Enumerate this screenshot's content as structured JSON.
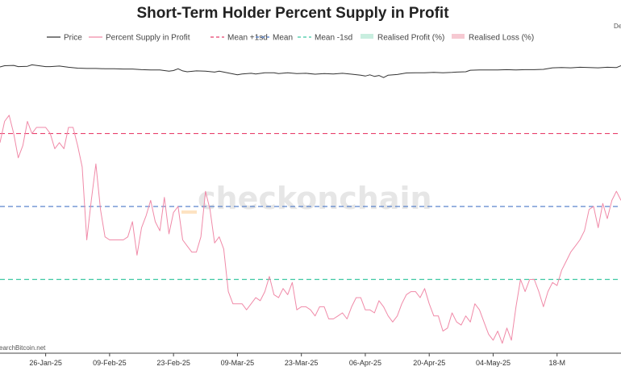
{
  "chart_data": {
    "type": "line",
    "title": "Short-Term Holder Percent Supply in Profit",
    "corner_label": "De",
    "watermark": "checkonchain",
    "source_note": "earchBitcoin.net",
    "legend": [
      {
        "name": "Price",
        "color": "#333333",
        "style": "solid"
      },
      {
        "name": "Percent Supply in Profit",
        "color": "#f08aa8",
        "style": "solid"
      },
      {
        "name": "Mean +1sd",
        "color": "#e8426e",
        "style": "dashed"
      },
      {
        "name": "Mean",
        "color": "#4a78c8",
        "style": "dashed"
      },
      {
        "name": "Mean -1sd",
        "color": "#3ec8a2",
        "style": "dashed"
      },
      {
        "name": "Realised Profit (%)",
        "color": "#c8eedf",
        "style": "box"
      },
      {
        "name": "Realised Loss (%)",
        "color": "#f6c9d2",
        "style": "box"
      }
    ],
    "x_ticks": [
      "26-Jan-25",
      "09-Feb-25",
      "23-Feb-25",
      "09-Mar-25",
      "23-Mar-25",
      "06-Apr-25",
      "20-Apr-25",
      "04-May-25",
      "18-M"
    ],
    "x_range_days": [
      -10,
      126
    ],
    "y_range": [
      0,
      100
    ],
    "mean_plus_1sd": 72,
    "mean": 48,
    "mean_minus_1sd": 24,
    "price_series": [
      [
        -10,
        93.9
      ],
      [
        -9,
        94.3
      ],
      [
        -7,
        94.4
      ],
      [
        -6,
        94.0
      ],
      [
        -4,
        94.1
      ],
      [
        -3,
        94.6
      ],
      [
        -1,
        94.2
      ],
      [
        0,
        94.0
      ],
      [
        1,
        94.0
      ],
      [
        3,
        94.2
      ],
      [
        5,
        93.8
      ],
      [
        7,
        93.5
      ],
      [
        9,
        93.4
      ],
      [
        11,
        93.4
      ],
      [
        13,
        93.3
      ],
      [
        15,
        93.3
      ],
      [
        17,
        93.2
      ],
      [
        19,
        93.2
      ],
      [
        21,
        93.0
      ],
      [
        23,
        92.9
      ],
      [
        25,
        92.9
      ],
      [
        27,
        92.5
      ],
      [
        28,
        92.7
      ],
      [
        29,
        93.3
      ],
      [
        30,
        92.6
      ],
      [
        31,
        92.3
      ],
      [
        33,
        92.6
      ],
      [
        35,
        92.5
      ],
      [
        37,
        92.2
      ],
      [
        38,
        92.5
      ],
      [
        40,
        91.9
      ],
      [
        42,
        91.3
      ],
      [
        43,
        91.6
      ],
      [
        45,
        91.8
      ],
      [
        46,
        91.6
      ],
      [
        48,
        92.0
      ],
      [
        50,
        92.0
      ],
      [
        51,
        91.7
      ],
      [
        53,
        92.0
      ],
      [
        55,
        91.7
      ],
      [
        57,
        91.8
      ],
      [
        59,
        91.5
      ],
      [
        61,
        91.7
      ],
      [
        63,
        91.6
      ],
      [
        65,
        91.8
      ],
      [
        67,
        91.5
      ],
      [
        69,
        91.2
      ],
      [
        70,
        90.9
      ],
      [
        71,
        91.3
      ],
      [
        72,
        90.8
      ],
      [
        73,
        91.1
      ],
      [
        74,
        90.4
      ],
      [
        75,
        91.2
      ],
      [
        77,
        91.4
      ],
      [
        79,
        91.9
      ],
      [
        81,
        92.0
      ],
      [
        83,
        92.0
      ],
      [
        85,
        92.1
      ],
      [
        87,
        92.0
      ],
      [
        89,
        92.1
      ],
      [
        90,
        92.2
      ],
      [
        92,
        92.3
      ],
      [
        93,
        92.8
      ],
      [
        95,
        92.9
      ],
      [
        97,
        92.9
      ],
      [
        99,
        92.9
      ],
      [
        101,
        93.0
      ],
      [
        103,
        92.9
      ],
      [
        105,
        93.0
      ],
      [
        107,
        93.0
      ],
      [
        109,
        93.1
      ],
      [
        111,
        93.6
      ],
      [
        113,
        93.7
      ],
      [
        115,
        93.6
      ],
      [
        117,
        93.8
      ],
      [
        119,
        93.7
      ],
      [
        121,
        93.6
      ],
      [
        123,
        93.8
      ],
      [
        125,
        93.7
      ],
      [
        126,
        94.3
      ]
    ],
    "profit_series": [
      [
        -10,
        69
      ],
      [
        -9,
        76
      ],
      [
        -8,
        78
      ],
      [
        -7,
        72
      ],
      [
        -6,
        64
      ],
      [
        -5,
        68
      ],
      [
        -4,
        76
      ],
      [
        -3,
        72
      ],
      [
        -2,
        74
      ],
      [
        -1,
        74
      ],
      [
        0,
        74
      ],
      [
        1,
        72
      ],
      [
        2,
        67
      ],
      [
        3,
        69
      ],
      [
        4,
        67
      ],
      [
        5,
        74
      ],
      [
        6,
        74
      ],
      [
        7,
        68
      ],
      [
        8,
        61
      ],
      [
        9,
        37
      ],
      [
        10,
        50
      ],
      [
        11,
        62
      ],
      [
        12,
        47
      ],
      [
        13,
        38
      ],
      [
        14,
        37
      ],
      [
        15,
        37
      ],
      [
        16,
        37
      ],
      [
        17,
        37
      ],
      [
        18,
        38
      ],
      [
        19,
        43
      ],
      [
        20,
        32
      ],
      [
        21,
        41
      ],
      [
        22,
        45
      ],
      [
        23,
        50
      ],
      [
        24,
        43
      ],
      [
        25,
        40
      ],
      [
        26,
        51
      ],
      [
        27,
        39
      ],
      [
        28,
        46
      ],
      [
        29,
        48
      ],
      [
        30,
        37
      ],
      [
        31,
        35
      ],
      [
        32,
        33
      ],
      [
        33,
        33
      ],
      [
        34,
        38
      ],
      [
        35,
        53
      ],
      [
        36,
        47
      ],
      [
        37,
        36
      ],
      [
        38,
        38
      ],
      [
        39,
        34
      ],
      [
        40,
        20
      ],
      [
        41,
        16
      ],
      [
        42,
        16
      ],
      [
        43,
        16
      ],
      [
        44,
        14
      ],
      [
        45,
        16
      ],
      [
        46,
        18
      ],
      [
        47,
        17
      ],
      [
        48,
        20
      ],
      [
        49,
        25
      ],
      [
        50,
        19
      ],
      [
        51,
        18
      ],
      [
        52,
        21
      ],
      [
        53,
        19
      ],
      [
        54,
        23
      ],
      [
        55,
        14
      ],
      [
        56,
        15
      ],
      [
        57,
        15
      ],
      [
        58,
        14
      ],
      [
        59,
        12
      ],
      [
        60,
        15
      ],
      [
        61,
        15
      ],
      [
        62,
        11
      ],
      [
        63,
        11
      ],
      [
        64,
        12
      ],
      [
        65,
        13
      ],
      [
        66,
        11
      ],
      [
        67,
        15
      ],
      [
        68,
        18
      ],
      [
        69,
        18
      ],
      [
        70,
        14
      ],
      [
        71,
        14
      ],
      [
        72,
        13
      ],
      [
        73,
        17
      ],
      [
        74,
        15
      ],
      [
        75,
        12
      ],
      [
        76,
        10
      ],
      [
        77,
        12
      ],
      [
        78,
        16
      ],
      [
        79,
        19
      ],
      [
        80,
        20
      ],
      [
        81,
        20
      ],
      [
        82,
        18
      ],
      [
        83,
        21
      ],
      [
        84,
        16
      ],
      [
        85,
        12
      ],
      [
        86,
        12
      ],
      [
        87,
        7
      ],
      [
        88,
        8
      ],
      [
        89,
        13
      ],
      [
        90,
        10
      ],
      [
        91,
        9
      ],
      [
        92,
        12
      ],
      [
        93,
        10
      ],
      [
        94,
        16
      ],
      [
        95,
        14
      ],
      [
        96,
        10
      ],
      [
        97,
        6
      ],
      [
        98,
        4
      ],
      [
        99,
        7
      ],
      [
        100,
        3
      ],
      [
        101,
        8
      ],
      [
        102,
        4
      ],
      [
        103,
        15
      ],
      [
        104,
        24
      ],
      [
        105,
        20
      ],
      [
        106,
        24
      ],
      [
        107,
        24
      ],
      [
        108,
        20
      ],
      [
        109,
        15
      ],
      [
        110,
        20
      ],
      [
        111,
        23
      ],
      [
        112,
        22
      ],
      [
        113,
        27
      ],
      [
        114,
        30
      ],
      [
        115,
        33
      ],
      [
        116,
        35
      ],
      [
        117,
        37
      ],
      [
        118,
        40
      ],
      [
        119,
        47
      ],
      [
        120,
        48
      ],
      [
        121,
        41
      ],
      [
        122,
        49
      ],
      [
        123,
        44
      ],
      [
        124,
        50
      ],
      [
        125,
        53
      ],
      [
        126,
        50
      ]
    ]
  }
}
